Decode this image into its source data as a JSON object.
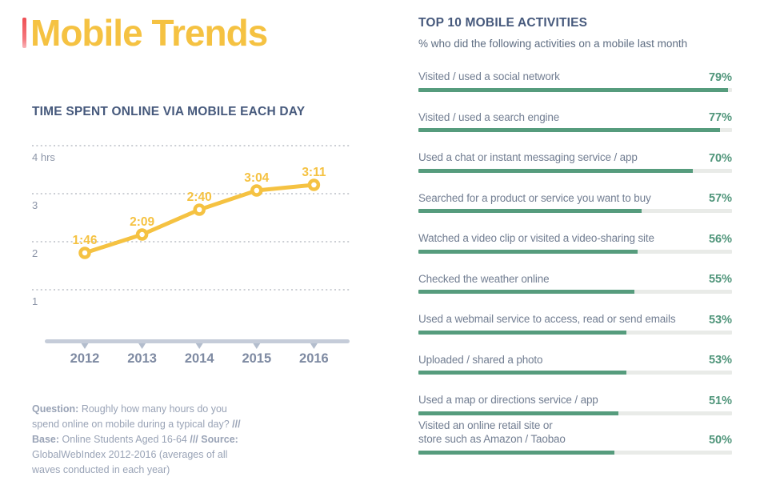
{
  "page": {
    "title": "Mobile Trends",
    "accent_yellow": "#F5C242",
    "accent_green": "#569C7D",
    "heading_color": "#46597c",
    "red_fragment_color": "#ef4f54"
  },
  "chart_data": [
    {
      "id": "time-spent-line-chart",
      "type": "line",
      "title": "TIME SPENT ONLINE VIA MOBILE EACH DAY",
      "x": [
        "2012",
        "2013",
        "2014",
        "2015",
        "2016"
      ],
      "y_hours": [
        1.767,
        2.15,
        2.667,
        3.067,
        3.183
      ],
      "point_labels": [
        "1:46",
        "2:09",
        "2:40",
        "3:04",
        "3:11"
      ],
      "y_ticks": [
        {
          "value": 4,
          "label": "4 hrs"
        },
        {
          "value": 3,
          "label": "3"
        },
        {
          "value": 2,
          "label": "2"
        },
        {
          "value": 1,
          "label": "1"
        }
      ],
      "ylim": [
        1,
        4
      ],
      "grid": "horizontal-dotted",
      "legend": "none",
      "line_color": "#F5C242"
    },
    {
      "id": "top-activities-bar-chart",
      "type": "bar",
      "orientation": "horizontal",
      "title": "TOP 10 MOBILE ACTIVITIES",
      "subtitle": "% who did the following activities on a mobile last month",
      "categories": [
        "Visited / used a social network",
        "Visited / used a search engine",
        "Used a chat or instant messaging service / app",
        "Searched for a product or service you want to buy",
        "Watched a video clip or visited a video-sharing site",
        "Checked the weather online",
        "Used a webmail service to access, read or send emails",
        "Uploaded / shared a photo",
        "Used a map or directions service / app",
        "Visited an online retail site or\nstore such as Amazon / Taobao"
      ],
      "values": [
        79,
        77,
        70,
        57,
        56,
        55,
        53,
        53,
        51,
        50
      ],
      "value_suffix": "%",
      "xlim": [
        0,
        80
      ],
      "bar_color": "#569C7D"
    }
  ],
  "footnote": {
    "lines": [
      [
        {
          "text": "Question:",
          "bold": true
        },
        {
          "text": " Roughly how many hours do you",
          "bold": false
        }
      ],
      [
        {
          "text": "spend online on mobile during a typical day? ",
          "bold": false
        },
        {
          "text": "///",
          "bold": true
        }
      ],
      [
        {
          "text": "Base:",
          "bold": true
        },
        {
          "text": " Online Students Aged 16-64  ",
          "bold": false
        },
        {
          "text": "///",
          "bold": true
        },
        {
          "text": "  ",
          "bold": false
        },
        {
          "text": "Source:",
          "bold": true
        }
      ],
      [
        {
          "text": "GlobalWebIndex 2012-2016 (averages of all",
          "bold": false
        }
      ],
      [
        {
          "text": "waves conducted in each year)",
          "bold": false
        }
      ]
    ]
  }
}
